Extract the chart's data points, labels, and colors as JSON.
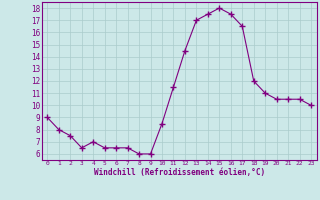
{
  "x": [
    0,
    1,
    2,
    3,
    4,
    5,
    6,
    7,
    8,
    9,
    10,
    11,
    12,
    13,
    14,
    15,
    16,
    17,
    18,
    19,
    20,
    21,
    22,
    23
  ],
  "y": [
    9,
    8,
    7.5,
    6.5,
    7,
    6.5,
    6.5,
    6.5,
    6,
    6,
    8.5,
    11.5,
    14.5,
    17,
    17.5,
    18,
    17.5,
    16.5,
    12,
    11,
    10.5,
    10.5,
    10.5,
    10
  ],
  "line_color": "#800080",
  "marker": "+",
  "marker_size": 4,
  "bg_color": "#cce8e8",
  "grid_color": "#aacccc",
  "xlabel": "Windchill (Refroidissement éolien,°C)",
  "xlabel_color": "#800080",
  "tick_color": "#800080",
  "ylim": [
    5.5,
    18.5
  ],
  "xlim": [
    -0.5,
    23.5
  ],
  "yticks": [
    6,
    7,
    8,
    9,
    10,
    11,
    12,
    13,
    14,
    15,
    16,
    17,
    18
  ],
  "xticks": [
    0,
    1,
    2,
    3,
    4,
    5,
    6,
    7,
    8,
    9,
    10,
    11,
    12,
    13,
    14,
    15,
    16,
    17,
    18,
    19,
    20,
    21,
    22,
    23
  ]
}
